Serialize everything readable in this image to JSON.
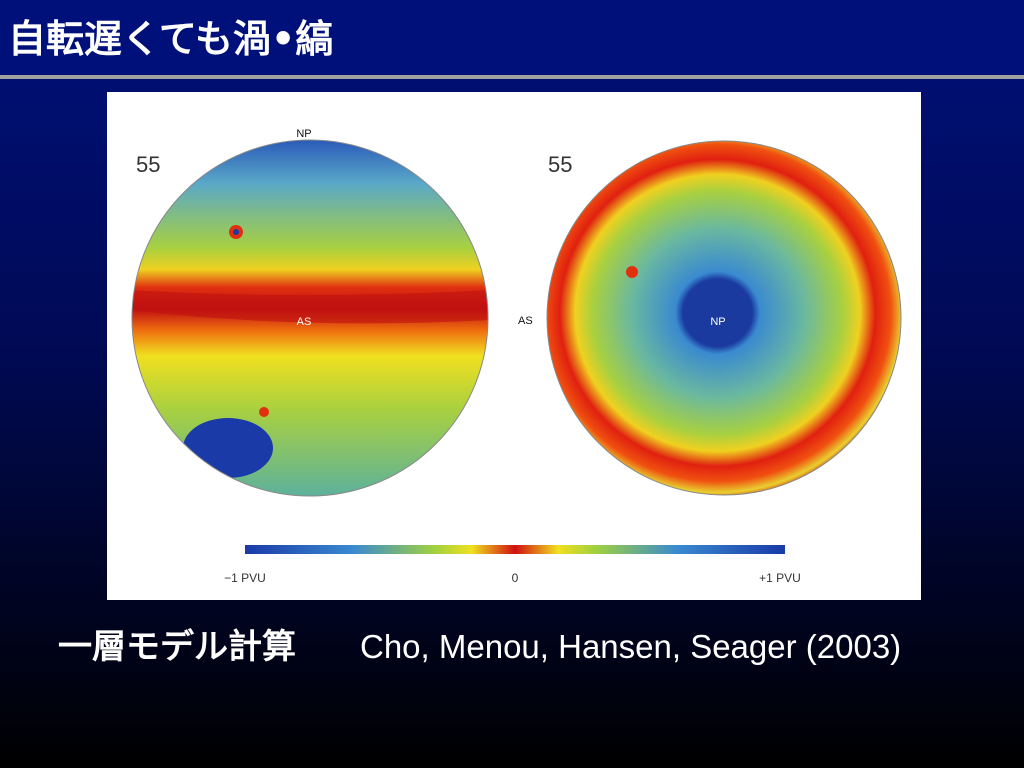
{
  "slide": {
    "title": "自転遅くても渦•縞",
    "figure": {
      "left_panel": {
        "frame": "55",
        "top_label": "NP",
        "band_label": "AS"
      },
      "right_panel": {
        "frame": "55",
        "side_label": "AS",
        "center_label": "NP"
      },
      "colorbar": {
        "min_label": "−1 PVU",
        "mid_label": "0",
        "max_label": "+1 PVU"
      }
    },
    "caption": {
      "japanese": "一層モデル計算",
      "citation": "Cho, Menou, Hansen, Seager (2003)"
    }
  }
}
